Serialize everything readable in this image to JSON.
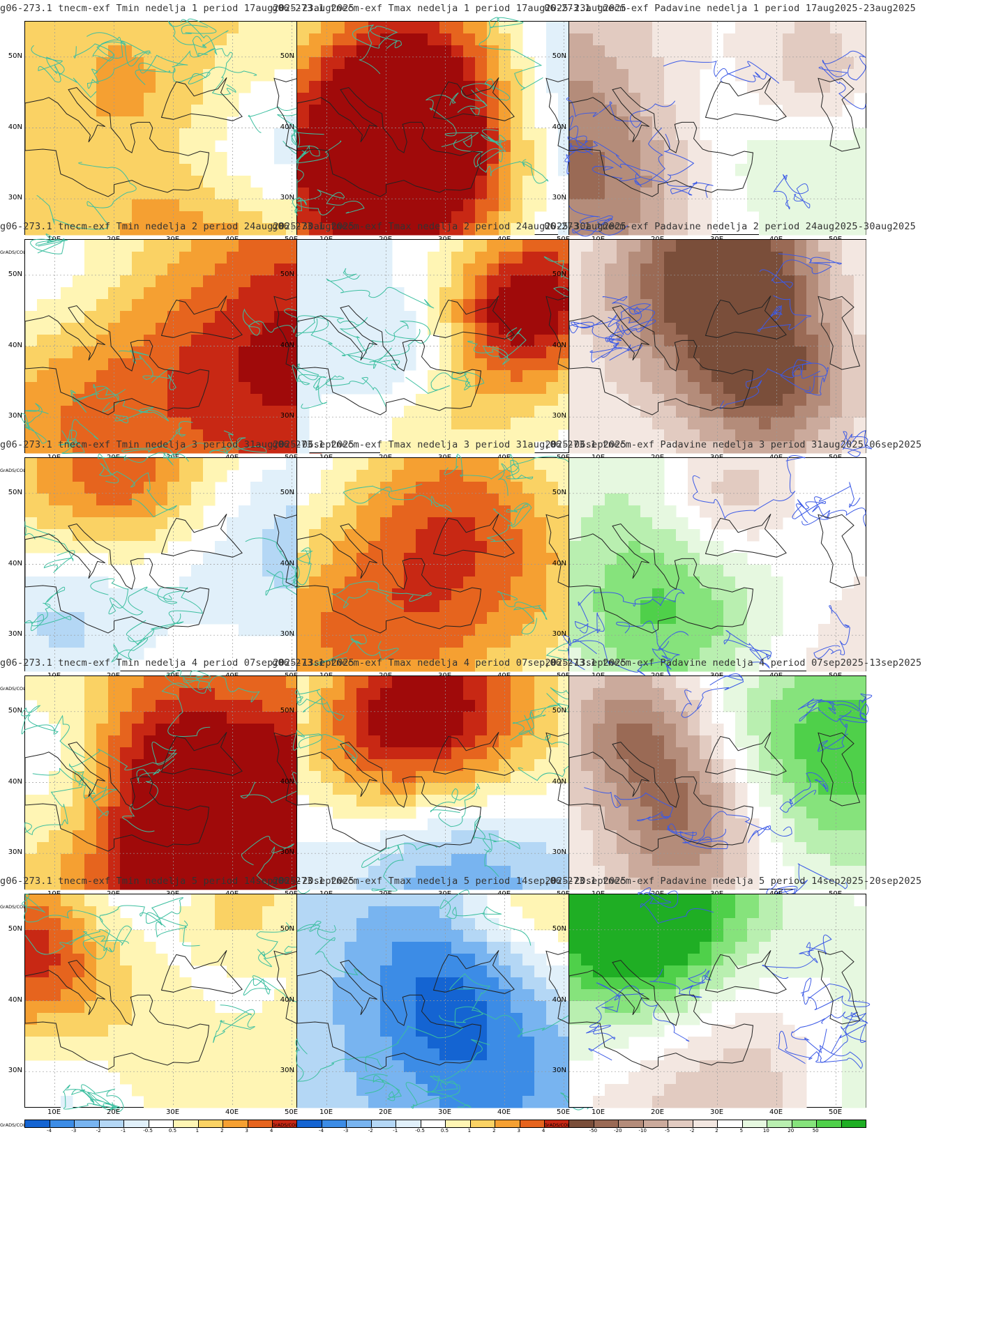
{
  "source_label": "GrADS/COLA",
  "lat_labels": [
    "50N",
    "40N",
    "30N"
  ],
  "lon_labels": [
    "10E",
    "20E",
    "30E",
    "40E",
    "50E"
  ],
  "scales": {
    "temp": {
      "labels": [
        "-4",
        "-3",
        "-2",
        "-1",
        "-0.5",
        "0.5",
        "1",
        "2",
        "3",
        "4"
      ],
      "colors": [
        "#1464d2",
        "#3c8ce6",
        "#78b4f0",
        "#b4d7f5",
        "#e1f0fa",
        "#ffffff",
        "#fff5b4",
        "#fad264",
        "#f5a032",
        "#e6641e",
        "#c82814",
        "#a00a0a"
      ]
    },
    "precip": {
      "labels": [
        "-50",
        "-20",
        "-10",
        "-5",
        "-2",
        "2",
        "5",
        "10",
        "20",
        "50"
      ],
      "colors": [
        "#7a4e3a",
        "#9a6a55",
        "#b48c7a",
        "#cbaa9c",
        "#e2cbc1",
        "#f3e7e1",
        "#ffffff",
        "#e6f8e0",
        "#b9efb0",
        "#86e37c",
        "#4fd04a",
        "#1fae24"
      ]
    }
  },
  "rows": [
    {
      "tmin_title": "g06-273.1 tnecm-exf Tmin nedelja 1 period 17aug2025-23aug2025",
      "tmax_title": "g06-273.1 tnecm-exf Tmax nedelja 1 period 17aug2025-23aug2025",
      "precip_title": "06-273.1 tnecm-exf Padavine nedelja 1 period 17aug2025-23aug2025"
    },
    {
      "tmin_title": "g06-273.1 tnecm-exf Tmin nedelja 2 period 24aug2025-30aug2025",
      "tmax_title": "g06-273.1 tnecm-exf Tmax nedelja 2 period 24aug2025-30aug2025",
      "precip_title": "06-273.1 tnecm-exf Padavine nedelja 2 period 24aug2025-30aug2025"
    },
    {
      "tmin_title": "g06-273.1 tnecm-exf Tmin nedelja 3 period 31aug2025-06sep2025",
      "tmax_title": "g06-273.1 tnecm-exf Tmax nedelja 3 period 31aug2025-06sep2025",
      "precip_title": "¡06-273.1 tnecm-exf Padavine nedelja 3 period 31aug2025-06sep2025"
    },
    {
      "tmin_title": "g06-273.1 tnecm-exf Tmin nedelja 4 period 07sep2025-13sep2025",
      "tmax_title": "g06-273.1 tnecm-exf Tmax nedelja 4 period 07sep2025-13sep2025",
      "precip_title": "¡06-273.1 tnecm-exf Padavine nedelja 4 period 07sep2025-13sep2025"
    },
    {
      "tmin_title": "g06-273.1 tnecm-exf Tmin nedelja 5 period 14sep2025-20sep2025",
      "tmax_title": "g06-273.1 tnecm-exf Tmax nedelja 5 period 14sep2025-20sep2025",
      "precip_title": "¡06-273.1 tnecm-exf Padavine nedelja 5 period 14sep2025-20sep2025"
    }
  ]
}
